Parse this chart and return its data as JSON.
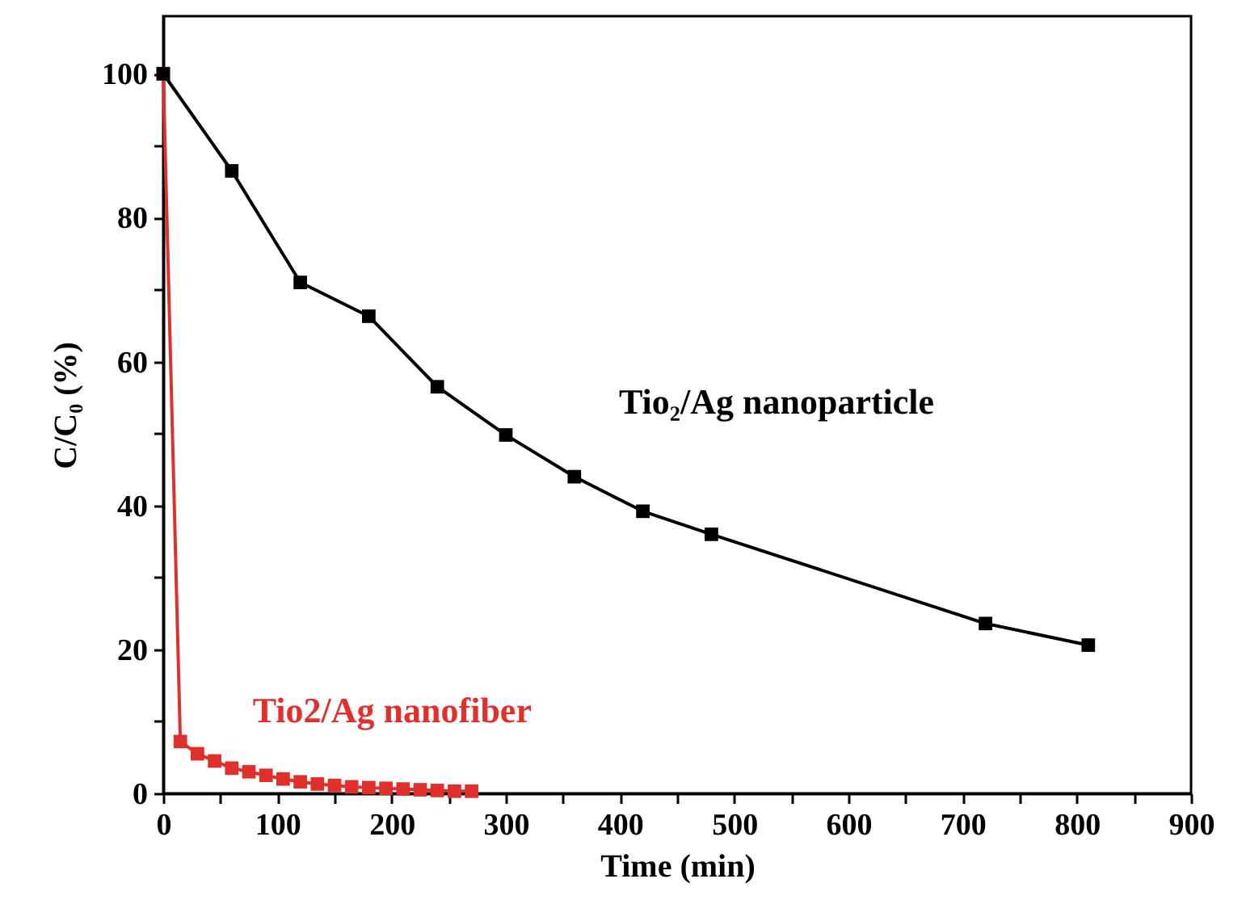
{
  "chart_data": {
    "type": "line",
    "xlabel": "Time (min)",
    "ylabel": "C/C₀ (%)",
    "xlim": [
      0,
      900
    ],
    "xticks": [
      0,
      {
        "value": 50,
        "label": null
      },
      100,
      {
        "value": 150,
        "label": null
      },
      200,
      {
        "value": 250,
        "label": null
      },
      300,
      {
        "value": 350,
        "label": null
      },
      400,
      {
        "value": 450,
        "label": null
      },
      500,
      {
        "value": 550,
        "label": null
      },
      600,
      {
        "value": 650,
        "label": null
      },
      700,
      {
        "value": 750,
        "label": null
      },
      800,
      {
        "value": 850,
        "label": null
      },
      900
    ],
    "ylim": [
      0,
      108
    ],
    "yticks": [
      0,
      {
        "value": 10,
        "label": null
      },
      20,
      {
        "value": 30,
        "label": null
      },
      40,
      {
        "value": 50,
        "label": null
      },
      60,
      {
        "value": 70,
        "label": null
      },
      80,
      {
        "value": 90,
        "label": null
      },
      100
    ],
    "marker": "square",
    "grid": false,
    "series": [
      {
        "name": "Tio₂/Ag nanoparticle",
        "color": "#000000",
        "x": [
          0,
          60,
          120,
          180,
          240,
          300,
          360,
          420,
          480,
          720,
          810
        ],
        "values": [
          100,
          86.5,
          71,
          66.3,
          56.5,
          49.8,
          44,
          39.2,
          36,
          23.6,
          20.6
        ]
      },
      {
        "name": "Tio2/Ag nanofiber",
        "color": "#e0302c",
        "x": [
          0,
          15,
          30,
          45,
          60,
          75,
          90,
          105,
          120,
          135,
          150,
          165,
          180,
          195,
          210,
          225,
          240,
          255,
          270
        ],
        "values": [
          100,
          7.2,
          5.5,
          4.5,
          3.5,
          3.0,
          2.5,
          2.0,
          1.6,
          1.3,
          1.1,
          0.9,
          0.8,
          0.7,
          0.6,
          0.5,
          0.4,
          0.3,
          0.3
        ]
      }
    ]
  }
}
